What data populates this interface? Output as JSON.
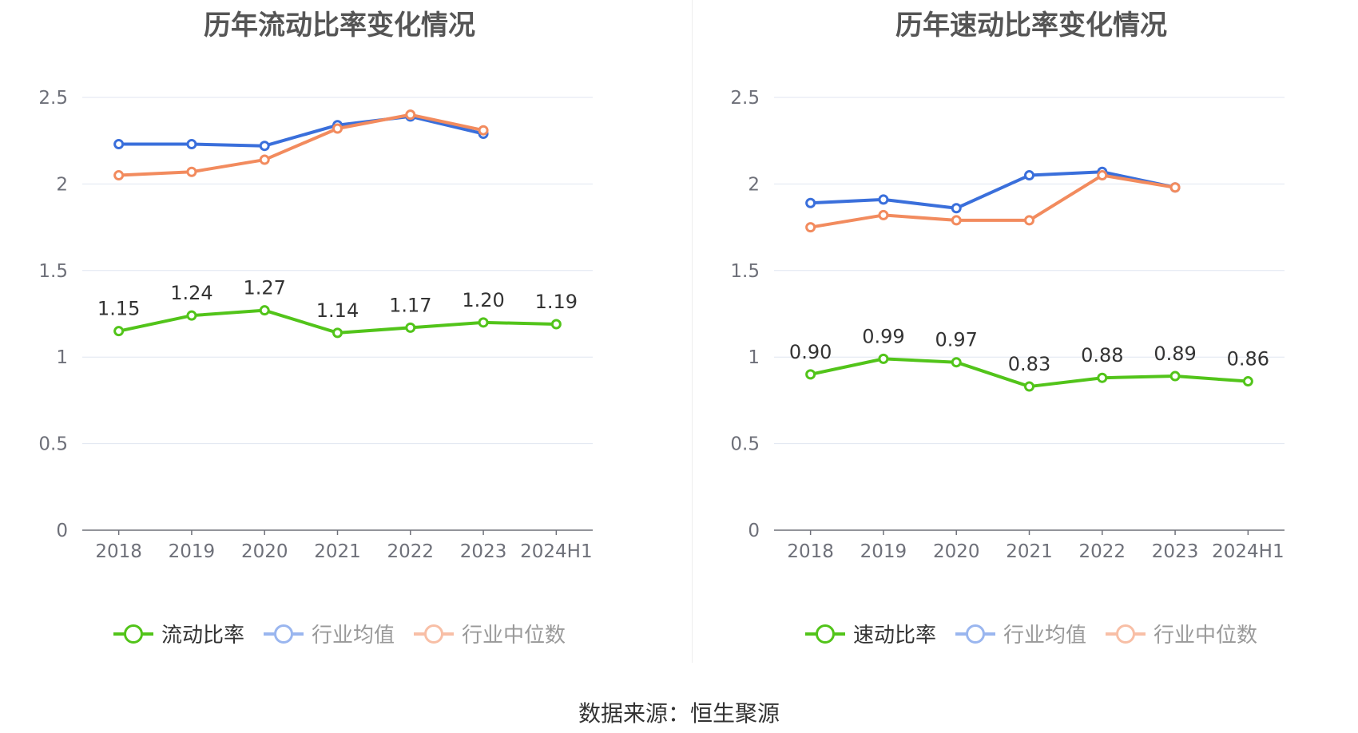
{
  "source_text": "数据来源：恒生聚源",
  "chart_data": [
    {
      "type": "line",
      "title": "历年流动比率变化情况",
      "categories": [
        "2018",
        "2019",
        "2020",
        "2021",
        "2022",
        "2023",
        "2024H1"
      ],
      "ylim": [
        0,
        2.5
      ],
      "yticks": [
        "0",
        "0.5",
        "1",
        "1.5",
        "2",
        "2.5"
      ],
      "grid": true,
      "legend_position": "bottom",
      "series": [
        {
          "name": "流动比率",
          "color": "#52c41a",
          "values": [
            1.15,
            1.24,
            1.27,
            1.14,
            1.17,
            1.2,
            1.19
          ],
          "labels": [
            "1.15",
            "1.24",
            "1.27",
            "1.14",
            "1.17",
            "1.20",
            "1.19"
          ]
        },
        {
          "name": "行业均值",
          "color": "#3a6fdb",
          "values": [
            2.23,
            2.23,
            2.22,
            2.34,
            2.39,
            2.29,
            null
          ]
        },
        {
          "name": "行业中位数",
          "color": "#f28b5e",
          "values": [
            2.05,
            2.07,
            2.14,
            2.32,
            2.4,
            2.31,
            null
          ]
        }
      ]
    },
    {
      "type": "line",
      "title": "历年速动比率变化情况",
      "categories": [
        "2018",
        "2019",
        "2020",
        "2021",
        "2022",
        "2023",
        "2024H1"
      ],
      "ylim": [
        0,
        2.5
      ],
      "yticks": [
        "0",
        "0.5",
        "1",
        "1.5",
        "2",
        "2.5"
      ],
      "grid": true,
      "legend_position": "bottom",
      "series": [
        {
          "name": "速动比率",
          "color": "#52c41a",
          "values": [
            0.9,
            0.99,
            0.97,
            0.83,
            0.88,
            0.89,
            0.86
          ],
          "labels": [
            "0.90",
            "0.99",
            "0.97",
            "0.83",
            "0.88",
            "0.89",
            "0.86"
          ]
        },
        {
          "name": "行业均值",
          "color": "#3a6fdb",
          "values": [
            1.89,
            1.91,
            1.86,
            2.05,
            2.07,
            1.98,
            null
          ]
        },
        {
          "name": "行业中位数",
          "color": "#f28b5e",
          "values": [
            1.75,
            1.82,
            1.79,
            1.79,
            2.05,
            1.98,
            null
          ]
        }
      ]
    }
  ]
}
